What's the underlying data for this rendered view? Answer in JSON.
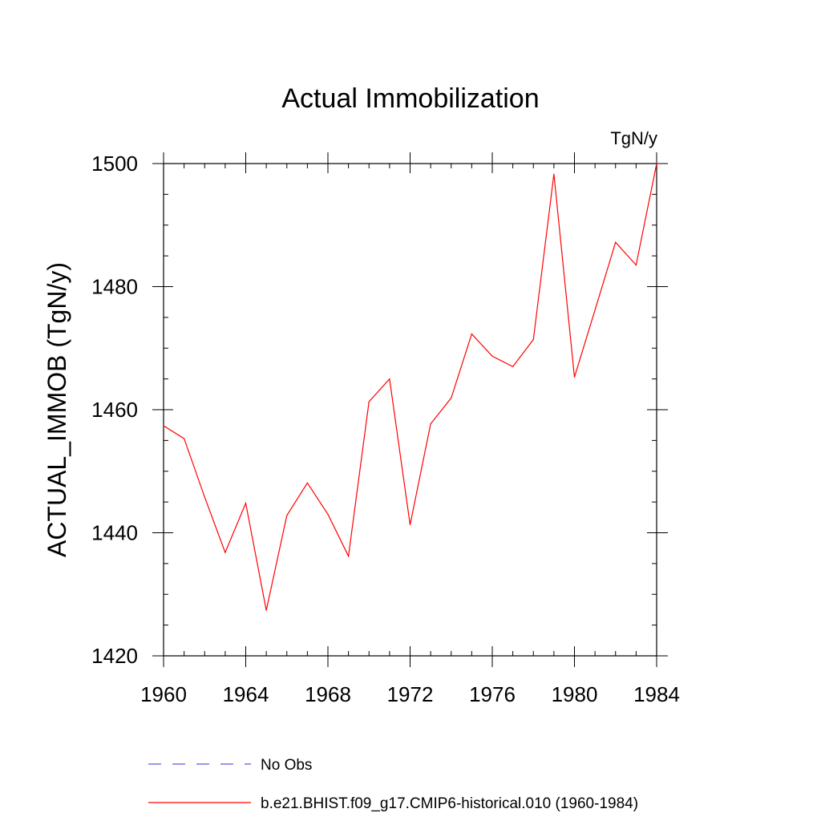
{
  "chart_data": {
    "type": "line",
    "title": "Actual Immobilization",
    "units_label": "TgN/y",
    "ylabel": "ACTUAL_IMMOB  (TgN/y)",
    "xlabel": "",
    "xlim": [
      1960,
      1984
    ],
    "ylim": [
      1420,
      1500
    ],
    "x_ticks": [
      1960,
      1964,
      1968,
      1972,
      1976,
      1980,
      1984
    ],
    "y_ticks": [
      1420,
      1440,
      1460,
      1480,
      1500
    ],
    "x_minor_step": 1,
    "y_minor_step": 5,
    "grid": false,
    "legend_position": "bottom",
    "x": [
      1960,
      1961,
      1962,
      1963,
      1964,
      1965,
      1966,
      1967,
      1968,
      1969,
      1970,
      1971,
      1972,
      1973,
      1974,
      1975,
      1976,
      1977,
      1978,
      1979,
      1980,
      1981,
      1982,
      1983,
      1984
    ],
    "series": [
      {
        "name": "b.e21.BHIST.f09_g17.CMIP6-historical.010 (1960-1984)",
        "color": "#ff0000",
        "style": "solid",
        "values": [
          1457.4,
          1455.3,
          1445.8,
          1436.8,
          1444.8,
          1427.4,
          1442.8,
          1448.1,
          1443.0,
          1436.2,
          1461.3,
          1465.0,
          1441.3,
          1457.7,
          1461.9,
          1472.3,
          1468.7,
          1467.0,
          1471.4,
          1498.3,
          1465.3,
          1476.2,
          1487.2,
          1483.5,
          1500.0
        ]
      }
    ],
    "legend": [
      {
        "label": "No Obs",
        "color": "#5a5adc",
        "style": "dashed"
      },
      {
        "label": "b.e21.BHIST.f09_g17.CMIP6-historical.010 (1960-1984)",
        "color": "#ff0000",
        "style": "solid"
      }
    ]
  }
}
